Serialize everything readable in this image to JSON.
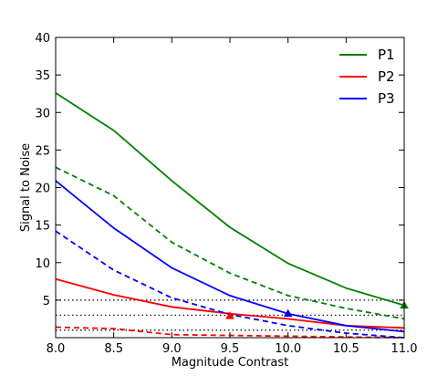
{
  "chart_data": {
    "type": "line",
    "title": "",
    "xlabel": "Magnitude Contrast",
    "ylabel": "Signal to Noise",
    "xlim": [
      8.0,
      11.0
    ],
    "ylim": [
      0,
      40
    ],
    "xticks": [
      8.0,
      8.5,
      9.0,
      9.5,
      10.0,
      10.5,
      11.0
    ],
    "xtick_labels": [
      "8.0",
      "8.5",
      "9.0",
      "9.5",
      "10.0",
      "10.5",
      "11.0"
    ],
    "yticks": [
      5,
      10,
      15,
      20,
      25,
      30,
      35,
      40
    ],
    "ytick_labels": [
      "5",
      "10",
      "15",
      "20",
      "25",
      "30",
      "35",
      "40"
    ],
    "grid": false,
    "legend_position": "top-right",
    "x": [
      8.0,
      8.5,
      9.0,
      9.5,
      10.0,
      10.5,
      11.0
    ],
    "series": [
      {
        "name": "P1",
        "color": "#008000",
        "style": "solid",
        "in_legend": true,
        "values": [
          32.6,
          27.6,
          20.9,
          14.7,
          9.9,
          6.6,
          4.3
        ]
      },
      {
        "name": "P2",
        "color": "#ff0000",
        "style": "solid",
        "in_legend": true,
        "values": [
          7.8,
          5.7,
          4.1,
          3.2,
          2.5,
          1.6,
          1.3
        ]
      },
      {
        "name": "P3",
        "color": "#0000ff",
        "style": "solid",
        "in_legend": true,
        "values": [
          20.9,
          14.6,
          9.3,
          5.6,
          3.2,
          1.6,
          0.8
        ]
      },
      {
        "color": "#008000",
        "style": "dashed",
        "in_legend": false,
        "values": [
          22.7,
          18.9,
          12.7,
          8.6,
          5.6,
          3.9,
          2.5
        ]
      },
      {
        "color": "#ff0000",
        "style": "dashed",
        "in_legend": false,
        "values": [
          1.4,
          1.2,
          0.4,
          0.3,
          0.2,
          0.1,
          0.0
        ]
      },
      {
        "color": "#0000ff",
        "style": "dashed",
        "in_legend": false,
        "values": [
          14.2,
          9.0,
          5.3,
          3.1,
          1.6,
          0.6,
          0.0
        ]
      }
    ],
    "reference_lines": [
      {
        "y": 5,
        "color": "#000000",
        "style": "dotted"
      },
      {
        "y": 3,
        "color": "#000000",
        "style": "dotted"
      },
      {
        "y": 1,
        "color": "#000000",
        "style": "dotted"
      }
    ],
    "markers": [
      {
        "x": 9.5,
        "y": 2.9,
        "color": "#ff0000",
        "shape": "triangle"
      },
      {
        "x": 10.0,
        "y": 3.2,
        "color": "#0000ff",
        "shape": "triangle"
      },
      {
        "x": 11.0,
        "y": 4.3,
        "color": "#008000",
        "shape": "triangle"
      }
    ]
  }
}
